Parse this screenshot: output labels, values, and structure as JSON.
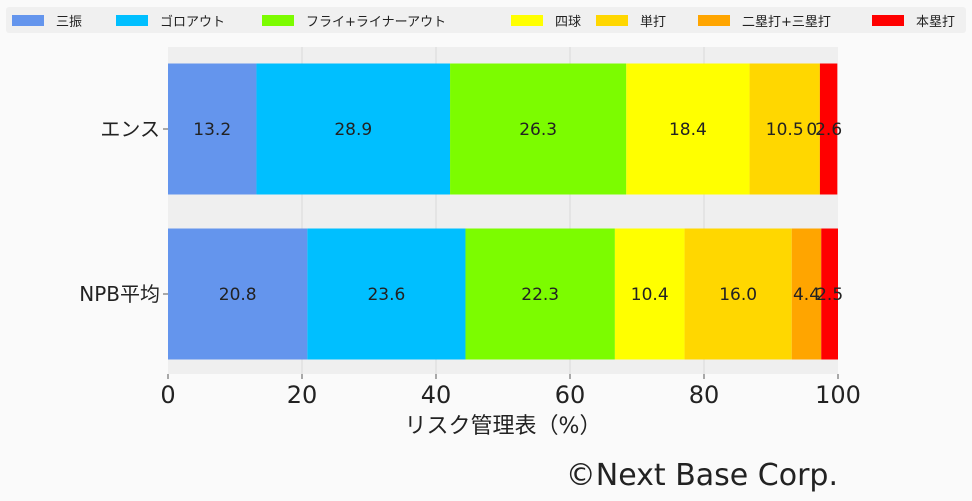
{
  "chart_data": {
    "type": "bar",
    "orientation": "horizontal",
    "stacked": true,
    "categories": [
      "エンス",
      "NPB平均"
    ],
    "series": [
      {
        "name": "三振",
        "color": "#6495ed",
        "values": [
          13.2,
          20.8
        ]
      },
      {
        "name": "ゴロアウト",
        "color": "#00bfff",
        "values": [
          28.9,
          23.6
        ]
      },
      {
        "name": "フライ+ライナーアウト",
        "color": "#7cfc00",
        "values": [
          26.3,
          22.3
        ]
      },
      {
        "name": "四球",
        "color": "#ffff00",
        "values": [
          18.4,
          10.4
        ]
      },
      {
        "name": "単打",
        "color": "#ffd700",
        "values": [
          10.5,
          16.0
        ]
      },
      {
        "name": "二塁打+三塁打",
        "color": "#ffa500",
        "values": [
          0.0,
          4.4
        ]
      },
      {
        "name": "本塁打",
        "color": "#ff0000",
        "values": [
          2.6,
          2.5
        ]
      }
    ],
    "xlabel": "リスク管理表（%）",
    "xlim": [
      0,
      100
    ],
    "xticks": [
      "0",
      "20",
      "40",
      "60",
      "80",
      "100"
    ],
    "grid": true,
    "legend_position": "top"
  },
  "copyright": "©Next Base Corp."
}
